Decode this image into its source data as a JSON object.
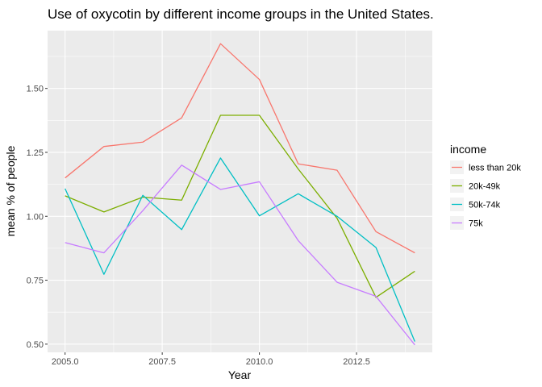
{
  "chart_data": {
    "type": "line",
    "title": "Use of oxycotin by different income groups in the United States.",
    "xlabel": "Year",
    "ylabel": "mean % of people",
    "xlim": [
      2004.55,
      2014.45
    ],
    "ylim": [
      0.468,
      1.726
    ],
    "x_ticks": [
      2005.0,
      2007.5,
      2010.0,
      2012.5
    ],
    "x_tick_labels": [
      "2005.0",
      "2007.5",
      "2010.0",
      "2012.5"
    ],
    "y_ticks": [
      0.5,
      0.75,
      1.0,
      1.25,
      1.5
    ],
    "y_tick_labels": [
      "0.50",
      "0.75",
      "1.00",
      "1.25",
      "1.50"
    ],
    "grid": true,
    "legend": {
      "title": "income",
      "position": "right"
    },
    "x": [
      2005,
      2006,
      2007,
      2008,
      2009,
      2010,
      2011,
      2012,
      2013,
      2014
    ],
    "series": [
      {
        "name": "less than 20k",
        "color": "#F8766D",
        "values": [
          1.15,
          1.273,
          1.29,
          1.385,
          1.675,
          1.535,
          1.205,
          1.18,
          0.94,
          0.857
        ]
      },
      {
        "name": "20k-49k",
        "color": "#7CAE00",
        "values": [
          1.08,
          1.017,
          1.075,
          1.063,
          1.395,
          1.395,
          1.185,
          0.992,
          0.683,
          0.785
        ]
      },
      {
        "name": "50k-74k",
        "color": "#00BFC4",
        "values": [
          1.108,
          0.773,
          1.082,
          0.948,
          1.228,
          1.002,
          1.088,
          1.0,
          0.878,
          0.51
        ]
      },
      {
        "name": "75k",
        "color": "#C77CFF",
        "values": [
          0.897,
          0.857,
          1.022,
          1.2,
          1.105,
          1.135,
          0.905,
          0.742,
          0.687,
          0.497
        ]
      }
    ]
  }
}
